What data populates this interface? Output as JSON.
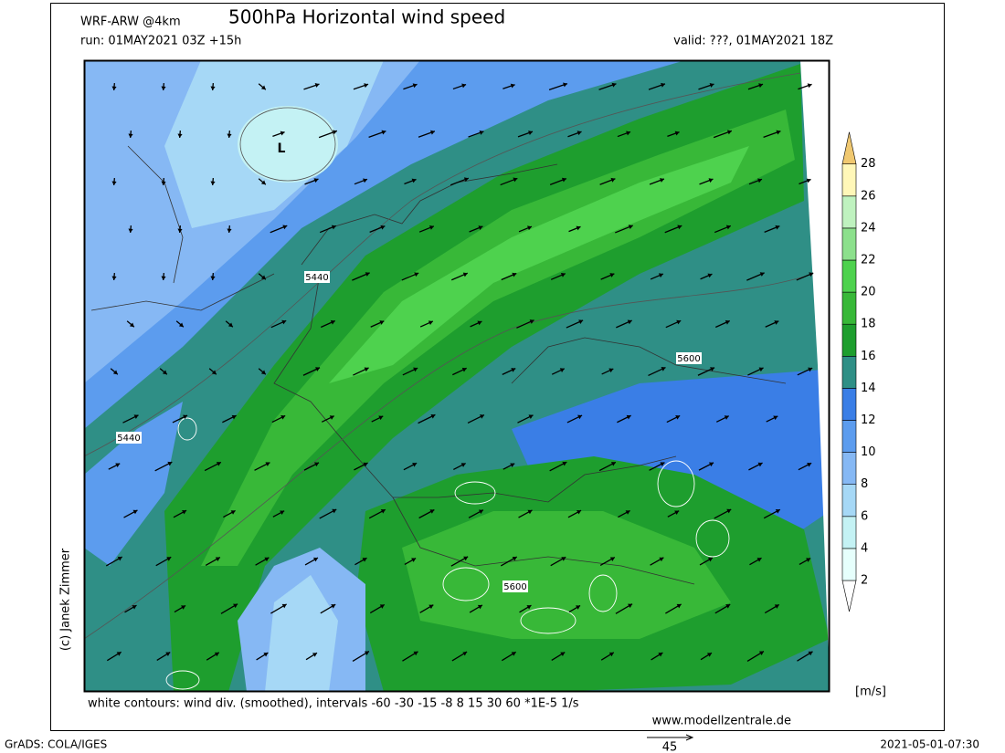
{
  "header": {
    "model": "WRF-ARW @4km",
    "title": "500hPa Horizontal wind speed",
    "run": "run: 01MAY2021 03Z +15h",
    "valid": "valid: ???, 01MAY2021 18Z"
  },
  "map": {
    "labels": [
      "L",
      "5440",
      "5440",
      "5600",
      "5600"
    ]
  },
  "colorbar": {
    "ticks": [
      2,
      4,
      6,
      8,
      10,
      12,
      14,
      16,
      18,
      20,
      22,
      24,
      26,
      28
    ],
    "unit": "[m/s]",
    "colors": [
      "#ffffff",
      "#e6fffc",
      "#c4f2f4",
      "#a6d8f6",
      "#86b8f4",
      "#5c9cee",
      "#3a7ee6",
      "#2f8f86",
      "#1e9e2e",
      "#38b838",
      "#4ed24e",
      "#8ce08c",
      "#bff2bf",
      "#fff7b8",
      "#f0c870"
    ]
  },
  "credit": "(c) Janek Zimmer",
  "note": "white contours: wind div. (smoothed), intervals -60 -30 -15 -8 8 15 30 60 *1E-5 1/s",
  "website": "www.modellzentrale.de",
  "reference_vector": "45",
  "footer": {
    "software": "GrADS: COLA/IGES",
    "timestamp": "2021-05-01-07:30"
  }
}
